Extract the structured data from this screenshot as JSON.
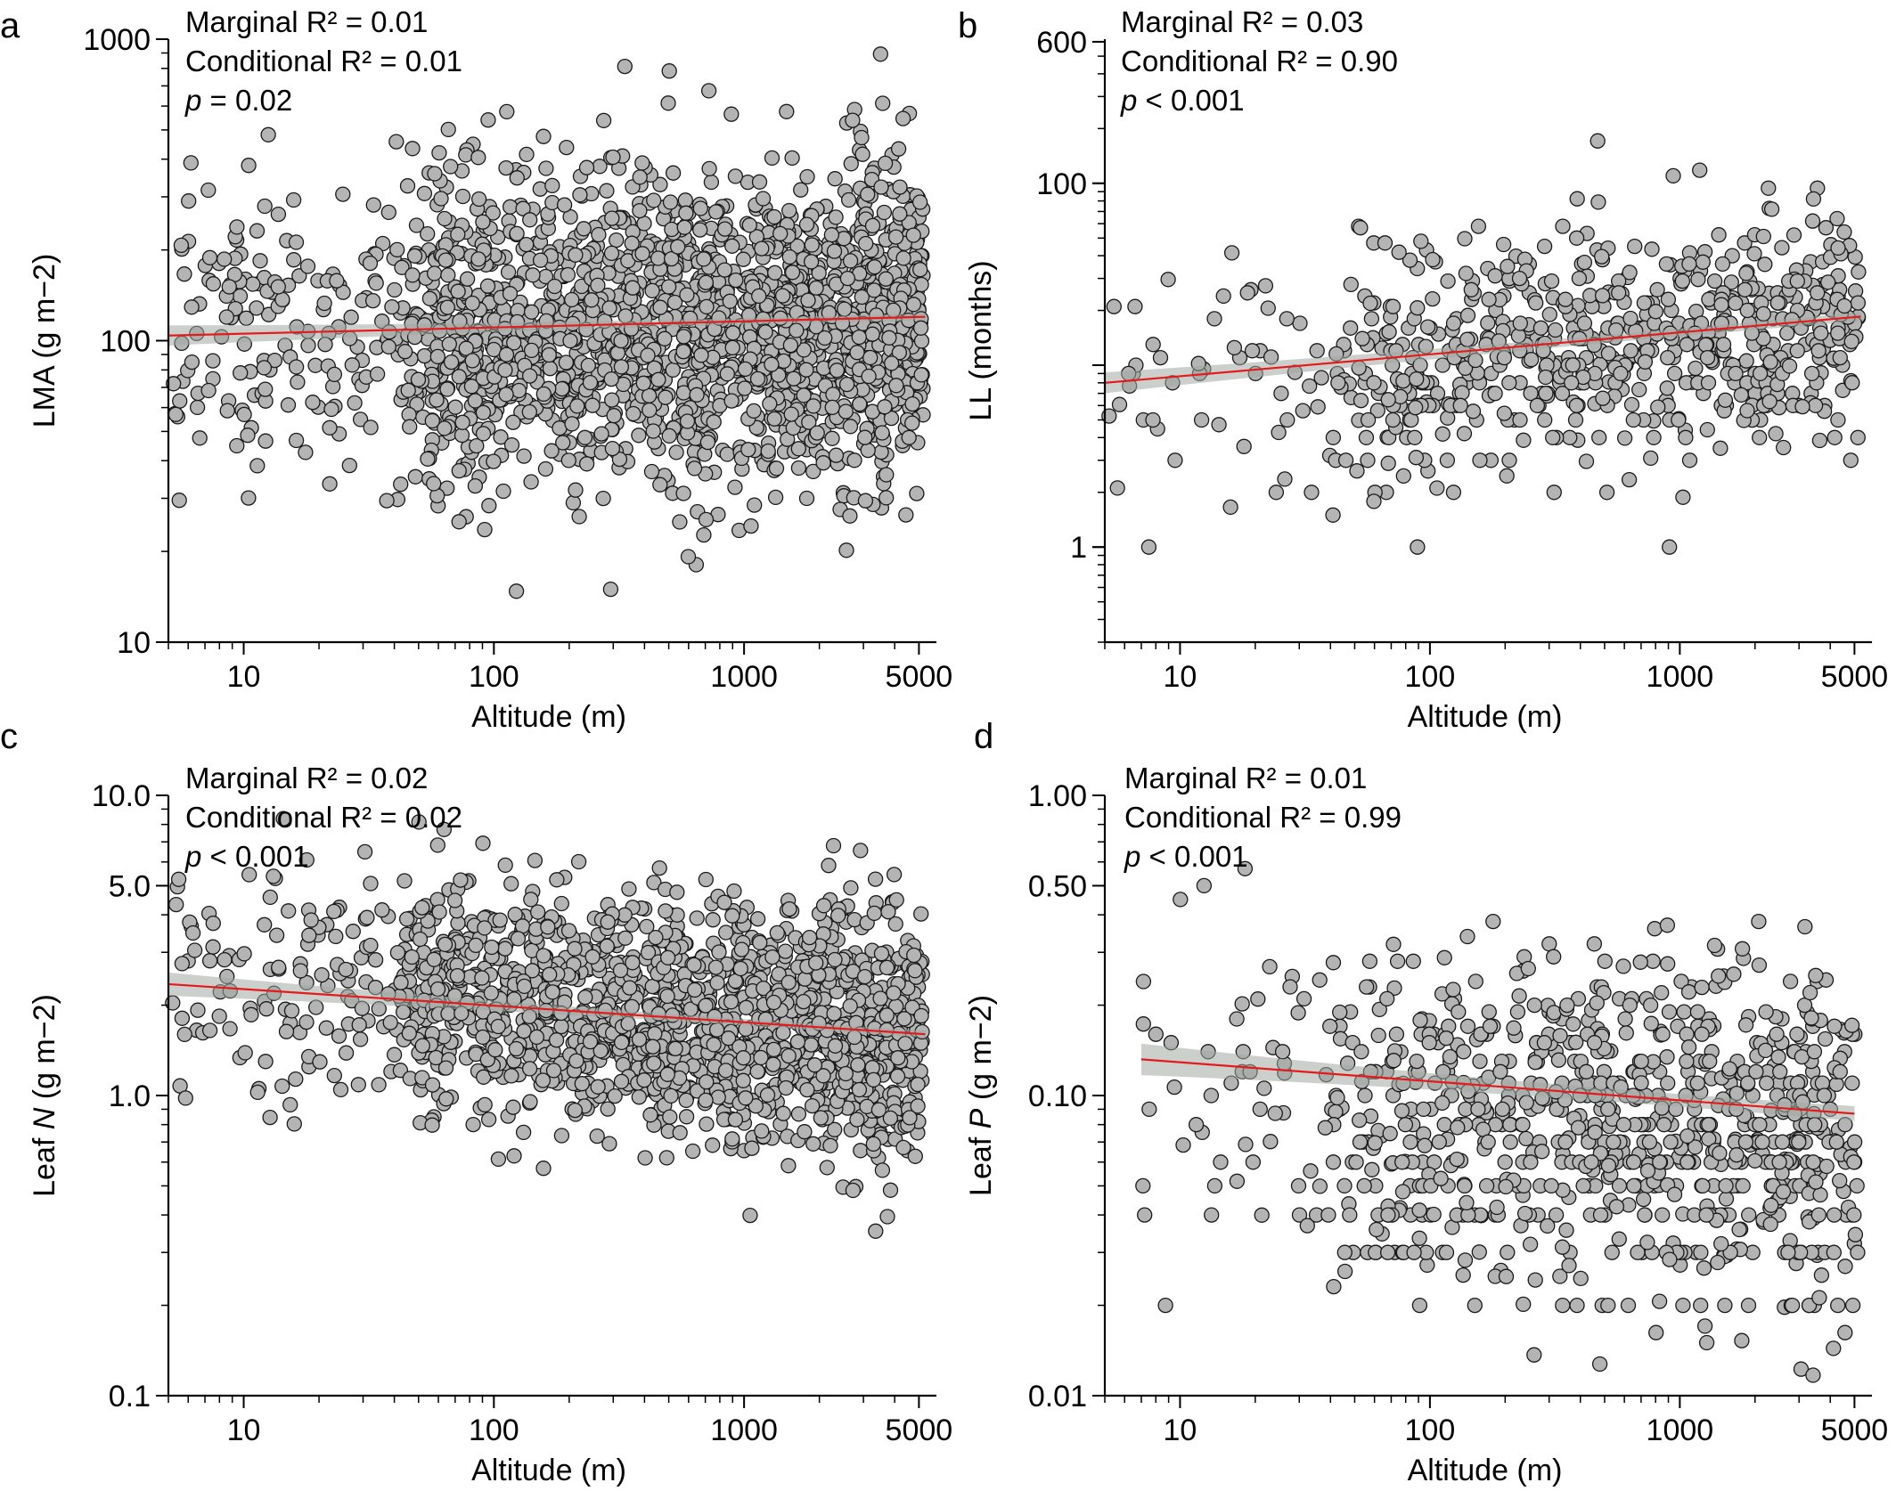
{
  "colors": {
    "points": "#b4b4b4",
    "point_outline": "#1a1a1a",
    "fit_line": "#e41a1c",
    "ci_band": "#a3aaa4"
  },
  "chart_data": [
    {
      "panel": "a",
      "type": "scatter",
      "xlabel": "Altitude (m)",
      "ylabel": "LMA (g m−2)",
      "xscale": "log",
      "yscale": "log",
      "xlim": [
        5,
        5500
      ],
      "ylim": [
        10,
        1000
      ],
      "xticks": [
        "10",
        "100",
        "1000",
        "5000"
      ],
      "yticks": [
        "10",
        "100",
        "1000"
      ],
      "annotation": {
        "marginal": "Marginal R² = 0.01",
        "conditional": "Conditional R²  = 0.01",
        "p_label": "p",
        "p_rest": " = 0.02"
      },
      "fit": {
        "x": [
          5,
          5300
        ],
        "y": [
          104,
          120
        ],
        "ci_halfwidth_log10": [
          0.03,
          0.012
        ]
      },
      "scatter_summary": {
        "n_points_approx": 2100,
        "y_geometric_center": 108,
        "y_log10_spread": 0.26
      }
    },
    {
      "panel": "b",
      "type": "scatter",
      "xlabel": "Altitude (m)",
      "ylabel": "LL (months)",
      "xscale": "log",
      "yscale": "log",
      "xlim": [
        5,
        5500
      ],
      "ylim": [
        0.3,
        620
      ],
      "xticks": [
        "10",
        "100",
        "1000",
        "5000"
      ],
      "yticks": [
        "1",
        "100",
        "600"
      ],
      "annotation": {
        "marginal": "Marginal R² = 0.03",
        "conditional": "Conditional R²  = 0.90",
        "p_label": "p",
        "p_rest": " < 0.001"
      },
      "fit": {
        "x": [
          5,
          5300
        ],
        "y": [
          8,
          18.5
        ],
        "ci_halfwidth_log10": [
          0.05,
          0.025
        ]
      },
      "scatter_summary": {
        "n_points_approx": 700,
        "y_geometric_center": 12,
        "y_log10_spread": 0.33
      }
    },
    {
      "panel": "c",
      "type": "scatter",
      "xlabel": "Altitude (m)",
      "ylabel": "Leaf N (g m−2)",
      "ylabel_parts": [
        "Leaf ",
        "N",
        " (g m−2)"
      ],
      "xscale": "log",
      "yscale": "log",
      "xlim": [
        5,
        5500
      ],
      "ylim": [
        0.1,
        10
      ],
      "xticks": [
        "10",
        "100",
        "1000",
        "5000"
      ],
      "yticks": [
        "0.1",
        "1.0",
        "5.0",
        "10.0"
      ],
      "annotation": {
        "marginal": "Marginal R² = 0.02",
        "conditional": "Conditional R²  = 0.02",
        "p_label": "p",
        "p_rest": " < 0.001"
      },
      "fit": {
        "x": [
          5,
          5300
        ],
        "y": [
          2.35,
          1.6
        ],
        "ci_halfwidth_log10": [
          0.035,
          0.012
        ]
      },
      "scatter_summary": {
        "n_points_approx": 1700,
        "y_geometric_center": 1.9,
        "y_log10_spread": 0.2
      }
    },
    {
      "panel": "d",
      "type": "scatter",
      "xlabel": "Altitude (m)",
      "ylabel": "Leaf P (g m−2)",
      "ylabel_parts": [
        "Leaf ",
        "P",
        " (g m−2)"
      ],
      "xscale": "log",
      "yscale": "log",
      "xlim": [
        5,
        5500
      ],
      "ylim": [
        0.01,
        1
      ],
      "xticks": [
        "10",
        "100",
        "1000",
        "5000"
      ],
      "yticks": [
        "0.01",
        "0.10",
        "0.50",
        "1.00"
      ],
      "annotation": {
        "marginal": "Marginal R² = 0.01",
        "conditional": "Conditional R²  = 0.99",
        "p_label": "p",
        "p_rest": " < 0.001"
      },
      "fit": {
        "x": [
          7,
          5000
        ],
        "y": [
          0.132,
          0.087
        ],
        "ci_halfwidth_log10": [
          0.045,
          0.025
        ]
      },
      "scatter_summary": {
        "n_points_approx": 900,
        "y_geometric_center": 0.085,
        "y_log10_spread": 0.3
      }
    }
  ],
  "panel_labels": [
    "a",
    "b",
    "c",
    "d"
  ]
}
